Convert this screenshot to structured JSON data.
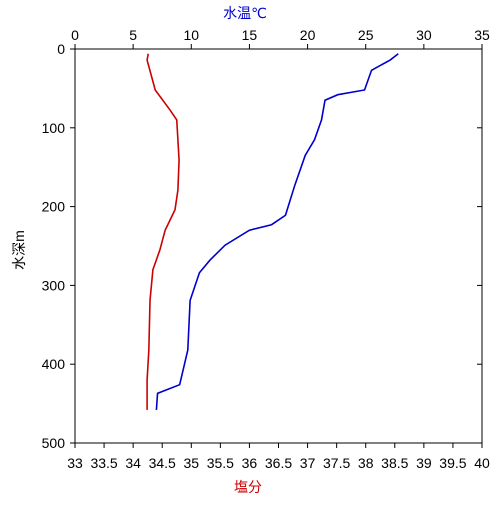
{
  "chart_data": {
    "type": "profile",
    "xlabel": "塩分",
    "x2label": "水温℃",
    "ylabel": "水深m",
    "xlim": [
      33,
      40
    ],
    "xticks": [
      33,
      33.5,
      34,
      34.5,
      35,
      35.5,
      36,
      36.5,
      37,
      37.5,
      38,
      38.5,
      39,
      39.5,
      40
    ],
    "x2lim": [
      0,
      35
    ],
    "x2ticks": [
      0,
      5,
      10,
      15,
      20,
      25,
      30,
      35
    ],
    "ylim": [
      0,
      500
    ],
    "yticks": [
      0,
      100,
      200,
      300,
      400,
      500
    ],
    "xlabel_color": "#cc0000",
    "x2label_color": "#0000cc",
    "series": [
      {
        "color": "#0000cc",
        "axis": "x2",
        "x": [
          27.8,
          27.1,
          25.5,
          24.9,
          22.6,
          21.5,
          21.2,
          20.6,
          19.8,
          18.9,
          18.1,
          16.9,
          15.0,
          12.9,
          11.6,
          10.7,
          9.9,
          9.7,
          9.0,
          7.1,
          7.0
        ],
        "values": [
          6,
          14,
          27,
          52,
          58,
          65,
          90,
          115,
          135,
          173,
          211,
          223,
          230,
          249,
          268,
          284,
          319,
          382,
          426,
          437,
          458
        ]
      },
      {
        "color": "#cc0000",
        "x": [
          34.26,
          34.24,
          34.38,
          34.63,
          34.75,
          34.79,
          34.77,
          34.72,
          34.55,
          34.46,
          34.34,
          34.29,
          34.27,
          34.24,
          34.24
        ],
        "values": [
          6,
          14,
          52,
          77,
          90,
          141,
          179,
          204,
          230,
          255,
          280,
          319,
          382,
          420,
          458
        ]
      }
    ]
  }
}
